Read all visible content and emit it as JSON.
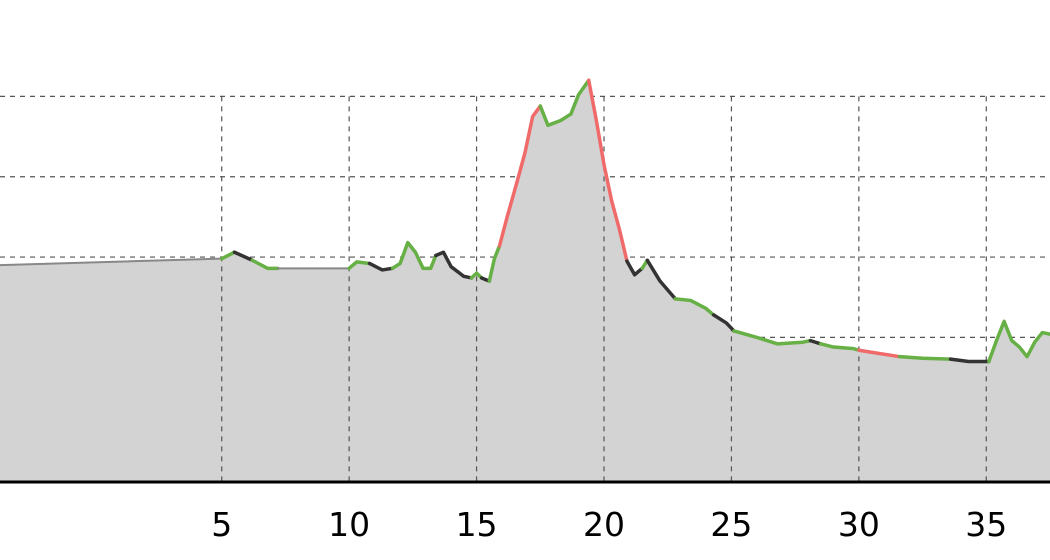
{
  "chart_data": {
    "type": "area",
    "title": "",
    "xlabel": "",
    "ylabel": "",
    "xlim": [
      -3.7,
      37.5
    ],
    "ylim": [
      0,
      6
    ],
    "grid": "dashed",
    "x_ticks": [
      5,
      10,
      15,
      20,
      25,
      30,
      35
    ],
    "x_tick_labels": [
      "5",
      "10",
      "15",
      "20",
      "25",
      "30",
      "35"
    ],
    "y_gridlines": [
      0.8,
      1.8,
      2.8,
      3.8,
      4.8
    ],
    "fill_color": "#d3d3d3",
    "segment_colors": {
      "up": "#66b045",
      "down": "#f06a6a",
      "flat": "#333333",
      "none": "#888888"
    },
    "segments": [
      {
        "trend": "none",
        "points": [
          [
            -3.7,
            2.7
          ],
          [
            5.0,
            2.78
          ]
        ]
      },
      {
        "trend": "up",
        "points": [
          [
            5.0,
            2.78
          ],
          [
            5.5,
            2.86
          ]
        ]
      },
      {
        "trend": "flat",
        "points": [
          [
            5.5,
            2.86
          ],
          [
            6.2,
            2.76
          ]
        ]
      },
      {
        "trend": "up",
        "points": [
          [
            6.2,
            2.76
          ],
          [
            6.8,
            2.66
          ],
          [
            7.2,
            2.66
          ]
        ]
      },
      {
        "trend": "none",
        "points": [
          [
            7.2,
            2.66
          ],
          [
            10.0,
            2.66
          ]
        ]
      },
      {
        "trend": "up",
        "points": [
          [
            10.0,
            2.66
          ],
          [
            10.3,
            2.74
          ],
          [
            10.8,
            2.72
          ]
        ]
      },
      {
        "trend": "flat",
        "points": [
          [
            10.8,
            2.72
          ],
          [
            11.3,
            2.64
          ],
          [
            11.7,
            2.66
          ]
        ]
      },
      {
        "trend": "up",
        "points": [
          [
            11.7,
            2.66
          ],
          [
            12.0,
            2.72
          ],
          [
            12.3,
            2.98
          ],
          [
            12.6,
            2.86
          ],
          [
            12.9,
            2.66
          ],
          [
            13.2,
            2.66
          ],
          [
            13.4,
            2.82
          ]
        ]
      },
      {
        "trend": "flat",
        "points": [
          [
            13.4,
            2.82
          ],
          [
            13.7,
            2.86
          ],
          [
            14.0,
            2.68
          ],
          [
            14.5,
            2.56
          ],
          [
            14.8,
            2.54
          ]
        ]
      },
      {
        "trend": "up",
        "points": [
          [
            14.8,
            2.54
          ],
          [
            15.0,
            2.6
          ],
          [
            15.2,
            2.54
          ]
        ]
      },
      {
        "trend": "flat",
        "points": [
          [
            15.2,
            2.54
          ],
          [
            15.5,
            2.5
          ]
        ]
      },
      {
        "trend": "up",
        "points": [
          [
            15.5,
            2.5
          ],
          [
            15.7,
            2.78
          ],
          [
            15.9,
            2.94
          ]
        ]
      },
      {
        "trend": "down",
        "points": [
          [
            15.9,
            2.94
          ],
          [
            16.2,
            3.3
          ],
          [
            16.6,
            3.75
          ],
          [
            16.9,
            4.1
          ],
          [
            17.2,
            4.55
          ],
          [
            17.5,
            4.68
          ]
        ]
      },
      {
        "trend": "up",
        "points": [
          [
            17.5,
            4.68
          ],
          [
            17.8,
            4.44
          ],
          [
            18.3,
            4.5
          ],
          [
            18.7,
            4.58
          ],
          [
            19.0,
            4.82
          ],
          [
            19.4,
            5.0
          ]
        ]
      },
      {
        "trend": "down",
        "points": [
          [
            19.4,
            5.0
          ],
          [
            19.7,
            4.5
          ],
          [
            20.0,
            3.95
          ],
          [
            20.3,
            3.5
          ],
          [
            20.6,
            3.15
          ],
          [
            20.9,
            2.75
          ]
        ]
      },
      {
        "trend": "flat",
        "points": [
          [
            20.9,
            2.75
          ],
          [
            21.2,
            2.58
          ],
          [
            21.5,
            2.66
          ]
        ]
      },
      {
        "trend": "up",
        "points": [
          [
            21.5,
            2.66
          ],
          [
            21.7,
            2.76
          ]
        ]
      },
      {
        "trend": "flat",
        "points": [
          [
            21.7,
            2.76
          ],
          [
            22.2,
            2.5
          ],
          [
            22.8,
            2.28
          ]
        ]
      },
      {
        "trend": "up",
        "points": [
          [
            22.8,
            2.28
          ],
          [
            23.4,
            2.26
          ],
          [
            24.0,
            2.16
          ],
          [
            24.3,
            2.08
          ]
        ]
      },
      {
        "trend": "flat",
        "points": [
          [
            24.3,
            2.08
          ],
          [
            24.8,
            1.98
          ],
          [
            25.1,
            1.88
          ]
        ]
      },
      {
        "trend": "up",
        "points": [
          [
            25.1,
            1.88
          ],
          [
            26.0,
            1.8
          ],
          [
            26.8,
            1.72
          ],
          [
            27.8,
            1.74
          ],
          [
            28.1,
            1.76
          ]
        ]
      },
      {
        "trend": "flat",
        "points": [
          [
            28.1,
            1.76
          ],
          [
            28.5,
            1.72
          ]
        ]
      },
      {
        "trend": "up",
        "points": [
          [
            28.5,
            1.72
          ],
          [
            29.0,
            1.68
          ],
          [
            29.8,
            1.66
          ],
          [
            30.0,
            1.64
          ]
        ]
      },
      {
        "trend": "down",
        "points": [
          [
            30.0,
            1.64
          ],
          [
            30.8,
            1.6
          ],
          [
            31.6,
            1.56
          ]
        ]
      },
      {
        "trend": "up",
        "points": [
          [
            31.6,
            1.56
          ],
          [
            32.5,
            1.54
          ],
          [
            33.6,
            1.53
          ]
        ]
      },
      {
        "trend": "flat",
        "points": [
          [
            33.6,
            1.53
          ],
          [
            34.3,
            1.5
          ],
          [
            35.1,
            1.5
          ]
        ]
      },
      {
        "trend": "up",
        "points": [
          [
            35.1,
            1.5
          ],
          [
            35.4,
            1.76
          ],
          [
            35.7,
            2.0
          ],
          [
            36.0,
            1.76
          ],
          [
            36.3,
            1.68
          ],
          [
            36.6,
            1.56
          ],
          [
            36.9,
            1.74
          ],
          [
            37.2,
            1.86
          ],
          [
            37.5,
            1.84
          ]
        ]
      }
    ]
  }
}
